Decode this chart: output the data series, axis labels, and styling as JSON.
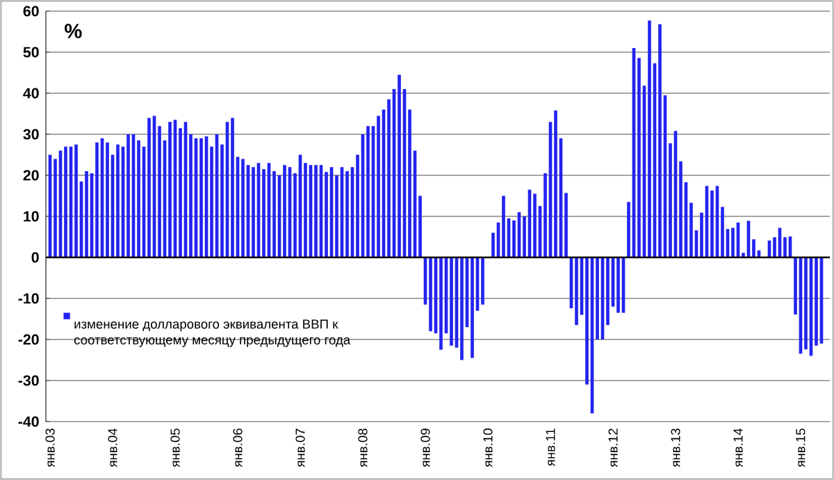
{
  "chart_data": {
    "type": "bar",
    "ylabel": "%",
    "categories": [
      "янв.03",
      null,
      null,
      null,
      null,
      null,
      null,
      null,
      null,
      null,
      null,
      null,
      "янв.04",
      null,
      null,
      null,
      null,
      null,
      null,
      null,
      null,
      null,
      null,
      null,
      "янв.05",
      null,
      null,
      null,
      null,
      null,
      null,
      null,
      null,
      null,
      null,
      null,
      "янв.06",
      null,
      null,
      null,
      null,
      null,
      null,
      null,
      null,
      null,
      null,
      null,
      "янв.07",
      null,
      null,
      null,
      null,
      null,
      null,
      null,
      null,
      null,
      null,
      null,
      "янв.08",
      null,
      null,
      null,
      null,
      null,
      null,
      null,
      null,
      null,
      null,
      null,
      "янв.09",
      null,
      null,
      null,
      null,
      null,
      null,
      null,
      null,
      null,
      null,
      null,
      "янв.10",
      null,
      null,
      null,
      null,
      null,
      null,
      null,
      null,
      null,
      null,
      null,
      "янв.11",
      null,
      null,
      null,
      null,
      null,
      null,
      null,
      null,
      null,
      null,
      null,
      "янв.12",
      null,
      null,
      null,
      null,
      null,
      null,
      null,
      null,
      null,
      null,
      null,
      "янв.13",
      null,
      null,
      null,
      null,
      null,
      null,
      null,
      null,
      null,
      null,
      null,
      "янв.14",
      null,
      null,
      null,
      null,
      null,
      null,
      null,
      null,
      null,
      null,
      null,
      "янв.15",
      null,
      null,
      null,
      null
    ],
    "series": [
      {
        "name": "изменение долларового  эквивалента ВВП к соответствующему месяцу предыдущего года",
        "color": "#2323f0",
        "values": [
          25,
          24,
          26,
          27,
          27,
          27.5,
          18.5,
          21,
          20.5,
          28,
          29,
          28,
          25,
          27.5,
          27,
          30,
          30,
          28.5,
          27,
          34,
          34.5,
          32,
          28.5,
          33,
          33.5,
          31.5,
          33,
          30,
          29,
          29,
          29.5,
          27,
          30,
          27.5,
          33,
          34,
          24.5,
          24,
          22.5,
          22,
          23,
          21.5,
          23,
          21,
          20,
          22.5,
          22,
          20.5,
          25,
          23,
          22.5,
          22.5,
          22.5,
          20.8,
          22,
          20,
          22,
          21,
          22,
          25,
          30,
          32,
          32,
          34.5,
          36,
          38.5,
          41,
          44.5,
          41,
          36,
          26,
          15,
          -11.5,
          -18,
          -18.5,
          -22.5,
          -18.5,
          -21.5,
          -22,
          -25,
          -17,
          -24.5,
          -13,
          -11.5,
          null,
          6,
          8.5,
          15,
          9.5,
          9,
          11,
          10,
          16.5,
          15.5,
          12.5,
          20.5,
          33,
          35.8,
          29,
          15.7,
          -12.4,
          -16.5,
          -14,
          -31,
          -38,
          -20,
          -20,
          -16.5,
          -12,
          -13.5,
          -13.5,
          13.5,
          51,
          48.6,
          41.8,
          57.7,
          47.3,
          56.8,
          39.5,
          27.8,
          30.8,
          23.4,
          18.3,
          13.3,
          6.6,
          10.9,
          17.4,
          16.3,
          17.4,
          12.3,
          6.9,
          7.2,
          8.5,
          1.1,
          8.9,
          4.4,
          1.7,
          null,
          4.1,
          4.9,
          7.2,
          4.9,
          5.1,
          -13.9,
          -23.5,
          -22.4,
          -24,
          -21.5,
          -21
        ]
      }
    ],
    "ylim": [
      -40,
      60
    ],
    "yticks": [
      -40,
      -30,
      -20,
      -10,
      0,
      10,
      20,
      30,
      40,
      50,
      60
    ],
    "grid": "y",
    "legend": "bottom left"
  }
}
